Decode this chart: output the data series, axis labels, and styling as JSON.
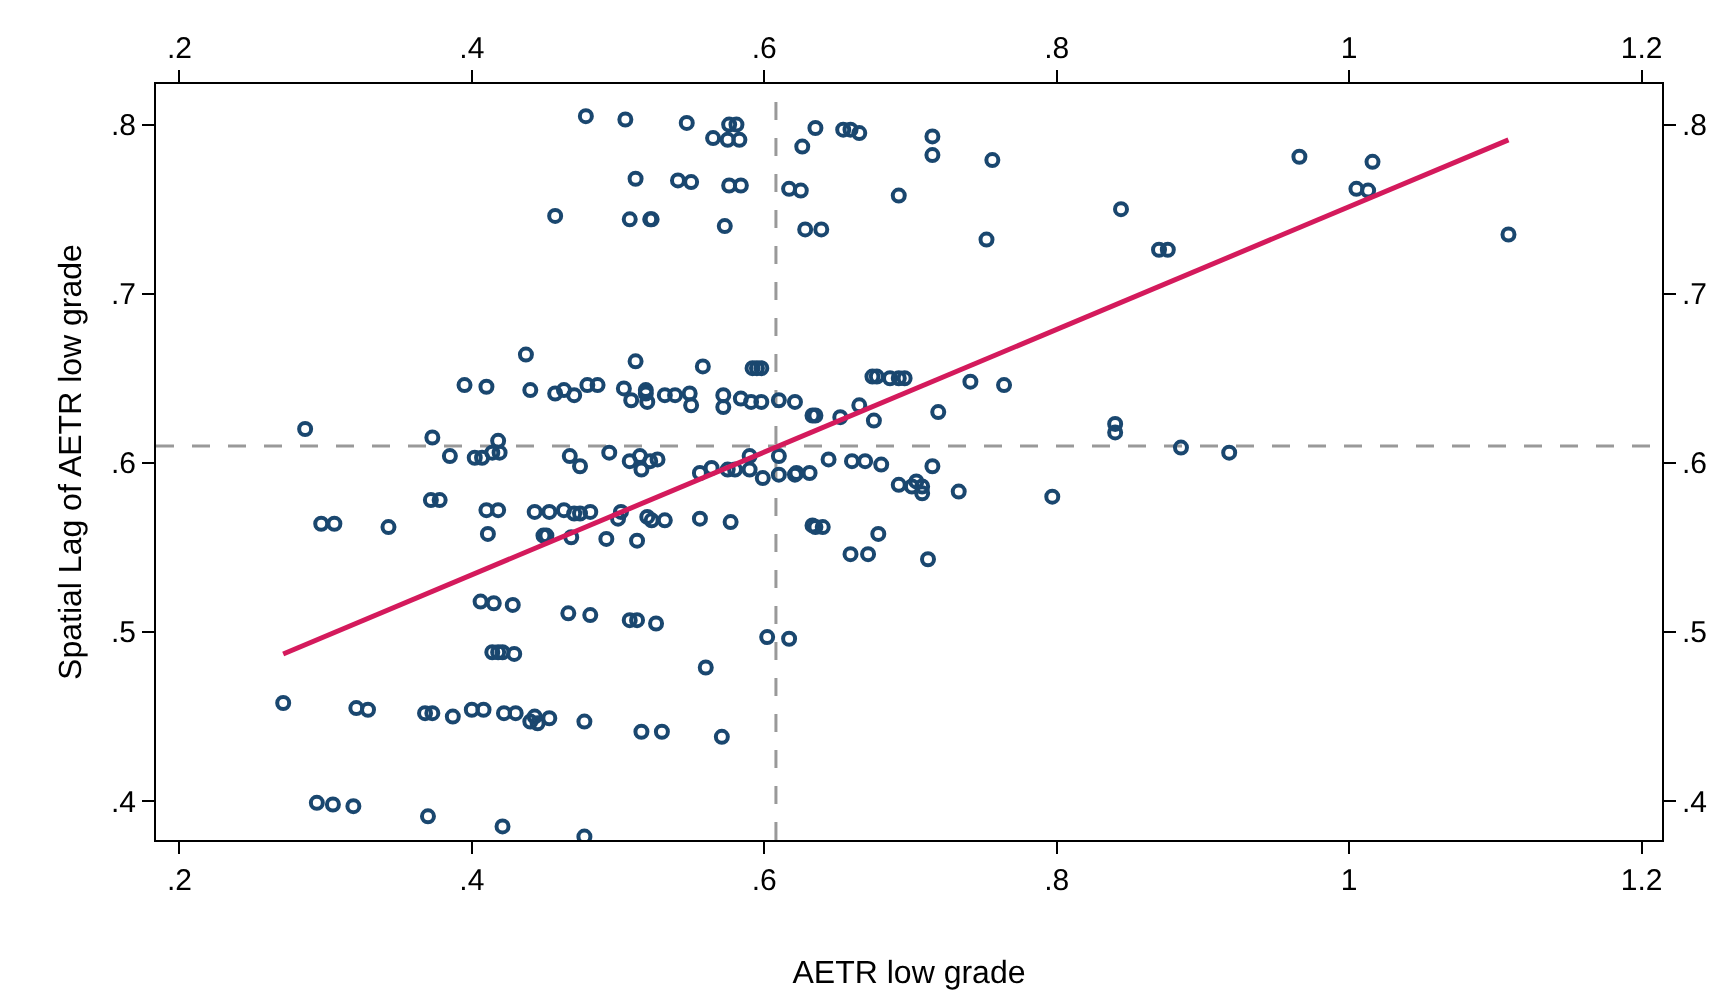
{
  "chart_data": {
    "type": "scatter",
    "xlabel": "AETR low grade",
    "ylabel": "Spatial Lag of AETR low grade",
    "xlim": [
      0.184,
      1.214
    ],
    "ylim": [
      0.377,
      0.824
    ],
    "xticks": [
      {
        "value": 0.2,
        "label": ".2"
      },
      {
        "value": 0.4,
        "label": ".4"
      },
      {
        "value": 0.6,
        "label": ".6"
      },
      {
        "value": 0.8,
        "label": ".8"
      },
      1,
      {
        "value": 1.2,
        "label": "1.2"
      }
    ],
    "yticks": [
      {
        "value": 0.4,
        "label": ".4"
      },
      {
        "value": 0.5,
        "label": ".5"
      },
      {
        "value": 0.6,
        "label": ".6"
      },
      {
        "value": 0.7,
        "label": ".7"
      },
      {
        "value": 0.8,
        "label": ".8"
      }
    ],
    "x2lim": [
      0.184,
      1.214
    ],
    "y2lim": [
      0.377,
      0.824
    ],
    "x2ticks": [
      {
        "value": 0.2,
        "label": ".2"
      },
      {
        "value": 0.4,
        "label": ".4"
      },
      {
        "value": 0.6,
        "label": ".6"
      },
      {
        "value": 0.8,
        "label": ".8"
      },
      1,
      {
        "value": 1.2,
        "label": "1.2"
      }
    ],
    "y2ticks": [
      {
        "value": 0.4,
        "label": ".4"
      },
      {
        "value": 0.5,
        "label": ".5"
      },
      {
        "value": 0.6,
        "label": ".6"
      },
      {
        "value": 0.7,
        "label": ".7"
      },
      {
        "value": 0.8,
        "label": ".8"
      }
    ],
    "grid": false,
    "marker": "circle",
    "ref_lines": [
      {
        "axis": "x",
        "value": 0.608,
        "color": "#999999",
        "line_style": "dashed"
      },
      {
        "axis": "y",
        "value": 0.61,
        "color": "#999999",
        "line_style": "dashed"
      }
    ],
    "series": [
      {
        "color": "#1a476f",
        "x": [
          0.478,
          0.505,
          0.547,
          0.576,
          0.581,
          0.565,
          0.575,
          0.583,
          0.512,
          0.541,
          0.55,
          0.576,
          0.584,
          0.457,
          0.508,
          0.522,
          0.523,
          0.573,
          0.626,
          0.617,
          0.625,
          0.628,
          0.437,
          0.512,
          0.558,
          0.592,
          0.595,
          0.598,
          0.395,
          0.41,
          0.44,
          0.457,
          0.463,
          0.47,
          0.479,
          0.486,
          0.504,
          0.509,
          0.519,
          0.519,
          0.52,
          0.532,
          0.539,
          0.549,
          0.55,
          0.572,
          0.572,
          0.584,
          0.591,
          0.598,
          0.61,
          0.621,
          0.633,
          0.286,
          0.373,
          0.418,
          0.385,
          0.402,
          0.407,
          0.414,
          0.419,
          0.467,
          0.474,
          0.494,
          0.508,
          0.515,
          0.516,
          0.522,
          0.527,
          0.59,
          0.61,
          0.556,
          0.564,
          0.575,
          0.58,
          0.59,
          0.599,
          0.61,
          0.621,
          0.631,
          0.372,
          0.378,
          0.41,
          0.418,
          0.297,
          0.306,
          0.343,
          0.411,
          0.443,
          0.453,
          0.463,
          0.47,
          0.474,
          0.481,
          0.449,
          0.451,
          0.468,
          0.492,
          0.5,
          0.502,
          0.513,
          0.52,
          0.523,
          0.532,
          0.556,
          0.577,
          0.633,
          0.406,
          0.415,
          0.428,
          0.466,
          0.481,
          0.508,
          0.513,
          0.526,
          0.602,
          0.617,
          0.414,
          0.418,
          0.421,
          0.429,
          0.56,
          0.271,
          0.321,
          0.329,
          0.368,
          0.373,
          0.387,
          0.4,
          0.408,
          0.422,
          0.43,
          0.44,
          0.443,
          0.445,
          0.453,
          0.477,
          0.516,
          0.53,
          0.571,
          0.294,
          0.305,
          0.319,
          0.37,
          0.421,
          0.477,
          0.635,
          0.654,
          0.659,
          0.665,
          0.715,
          0.715,
          0.756,
          0.692,
          0.639,
          0.752,
          0.966,
          1.016,
          1.005,
          1.013,
          0.844,
          0.87,
          0.876,
          1.109,
          0.674,
          0.677,
          0.686,
          0.692,
          0.696,
          0.741,
          0.764,
          0.635,
          0.652,
          0.665,
          0.675,
          0.719,
          0.84,
          0.84,
          0.885,
          0.918,
          0.644,
          0.66,
          0.669,
          0.68,
          0.715,
          0.622,
          0.692,
          0.701,
          0.704,
          0.708,
          0.708,
          0.733,
          0.797,
          0.635,
          0.64,
          0.678,
          0.659,
          0.671,
          0.712
        ],
        "values": [
          0.805,
          0.803,
          0.801,
          0.8,
          0.8,
          0.792,
          0.791,
          0.791,
          0.768,
          0.767,
          0.766,
          0.764,
          0.764,
          0.746,
          0.744,
          0.744,
          0.744,
          0.74,
          0.787,
          0.762,
          0.761,
          0.738,
          0.664,
          0.66,
          0.657,
          0.656,
          0.656,
          0.656,
          0.646,
          0.645,
          0.643,
          0.641,
          0.643,
          0.64,
          0.646,
          0.646,
          0.644,
          0.637,
          0.643,
          0.641,
          0.636,
          0.64,
          0.64,
          0.641,
          0.634,
          0.64,
          0.633,
          0.638,
          0.636,
          0.636,
          0.637,
          0.636,
          0.628,
          0.62,
          0.615,
          0.613,
          0.604,
          0.603,
          0.603,
          0.606,
          0.606,
          0.604,
          0.598,
          0.606,
          0.601,
          0.604,
          0.596,
          0.601,
          0.602,
          0.604,
          0.604,
          0.594,
          0.597,
          0.596,
          0.596,
          0.596,
          0.591,
          0.593,
          0.593,
          0.594,
          0.578,
          0.578,
          0.572,
          0.572,
          0.564,
          0.564,
          0.562,
          0.558,
          0.571,
          0.571,
          0.572,
          0.57,
          0.57,
          0.571,
          0.557,
          0.557,
          0.556,
          0.555,
          0.567,
          0.571,
          0.554,
          0.568,
          0.566,
          0.566,
          0.567,
          0.565,
          0.563,
          0.518,
          0.517,
          0.516,
          0.511,
          0.51,
          0.507,
          0.507,
          0.505,
          0.497,
          0.496,
          0.488,
          0.488,
          0.488,
          0.487,
          0.479,
          0.458,
          0.455,
          0.454,
          0.452,
          0.452,
          0.45,
          0.454,
          0.454,
          0.452,
          0.452,
          0.447,
          0.45,
          0.446,
          0.449,
          0.447,
          0.441,
          0.441,
          0.438,
          0.399,
          0.398,
          0.397,
          0.391,
          0.385,
          0.379,
          0.798,
          0.797,
          0.797,
          0.795,
          0.793,
          0.782,
          0.779,
          0.758,
          0.738,
          0.732,
          0.781,
          0.778,
          0.762,
          0.761,
          0.75,
          0.726,
          0.726,
          0.735,
          0.651,
          0.651,
          0.65,
          0.65,
          0.65,
          0.648,
          0.646,
          0.628,
          0.627,
          0.634,
          0.625,
          0.63,
          0.623,
          0.618,
          0.609,
          0.606,
          0.602,
          0.601,
          0.601,
          0.599,
          0.598,
          0.594,
          0.587,
          0.586,
          0.589,
          0.586,
          0.582,
          0.583,
          0.58,
          0.562,
          0.562,
          0.558,
          0.546,
          0.546,
          0.543
        ]
      },
      {
        "type": "line",
        "marker": "none",
        "color": "#d41a5c",
        "x": [
          0.271,
          1.109
        ],
        "values": [
          0.487,
          0.791
        ]
      }
    ]
  }
}
